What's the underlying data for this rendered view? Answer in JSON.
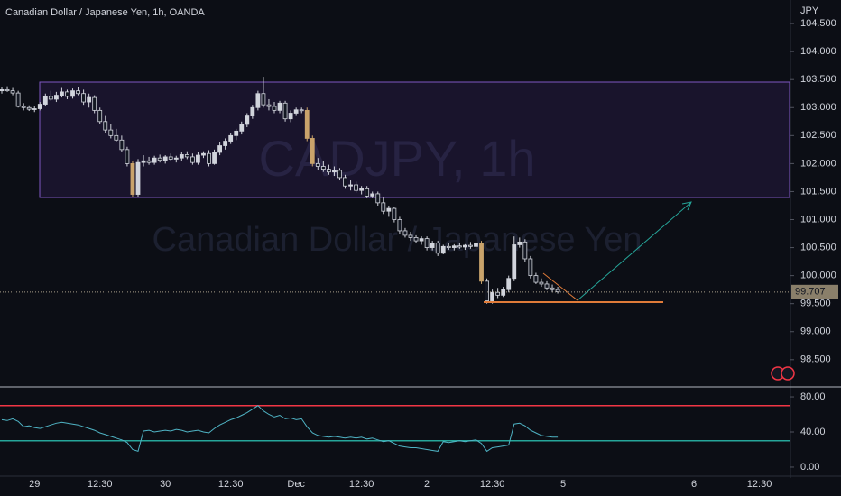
{
  "chart_data": [
    {
      "type": "candlestick",
      "title": "Canadian Dollar / Japanese Yen, 1h, OANDA",
      "watermark": "CADJPY, 1h",
      "watermark_subtitle": "Canadian Dollar / Japanese Yen",
      "y_axis_label": "JPY",
      "last_price": 99.707,
      "up_color": "#d1d4dc",
      "down_color": "#131722",
      "highlight_color": "#c9a36b",
      "categories": [
        null,
        null,
        null,
        null,
        null,
        null,
        "29",
        null,
        null,
        null,
        null,
        null,
        null,
        null,
        null,
        null,
        null,
        null,
        "12:30",
        null,
        null,
        null,
        null,
        null,
        null,
        null,
        null,
        null,
        null,
        null,
        "30",
        null,
        null,
        null,
        null,
        null,
        null,
        null,
        null,
        null,
        null,
        null,
        "12:30",
        null,
        null,
        null,
        null,
        null,
        null,
        null,
        null,
        null,
        null,
        null,
        "Dec",
        null,
        null,
        null,
        null,
        null,
        null,
        null,
        null,
        null,
        null,
        null,
        "12:30",
        null,
        null,
        null,
        null,
        null,
        null,
        null,
        null,
        null,
        null,
        null,
        "2",
        null,
        null,
        null,
        null,
        null,
        null,
        null,
        null,
        null,
        null,
        null,
        "12:30",
        null,
        null,
        null,
        null,
        null,
        null,
        null,
        null,
        null,
        null,
        null,
        null,
        "5",
        null,
        null,
        null,
        null,
        null,
        null,
        null,
        null,
        null,
        null,
        null,
        null,
        null,
        null,
        null,
        null,
        null,
        null,
        null,
        null,
        null,
        null,
        null,
        "6",
        null,
        null,
        null,
        null,
        null,
        null,
        null,
        null,
        null,
        null,
        null,
        "12:30",
        null,
        null
      ],
      "candles": [
        [
          103.3,
          103.36,
          103.25,
          103.32
        ],
        [
          103.32,
          103.38,
          103.28,
          103.3
        ],
        [
          103.3,
          103.35,
          103.22,
          103.26
        ],
        [
          103.26,
          103.3,
          103.0,
          103.02
        ],
        [
          103.02,
          103.08,
          102.95,
          103.0
        ],
        [
          103.0,
          103.04,
          102.94,
          102.97
        ],
        [
          102.97,
          103.02,
          102.92,
          102.98
        ],
        [
          102.98,
          103.1,
          102.95,
          103.06
        ],
        [
          103.06,
          103.25,
          103.02,
          103.2
        ],
        [
          103.2,
          103.3,
          103.12,
          103.15
        ],
        [
          103.15,
          103.28,
          103.1,
          103.22
        ],
        [
          103.22,
          103.35,
          103.18,
          103.28
        ],
        [
          103.28,
          103.32,
          103.15,
          103.2
        ],
        [
          103.2,
          103.34,
          103.16,
          103.3
        ],
        [
          103.3,
          103.36,
          103.22,
          103.25
        ],
        [
          103.25,
          103.32,
          103.05,
          103.1
        ],
        [
          103.1,
          103.25,
          103.0,
          103.18
        ],
        [
          103.18,
          103.22,
          102.9,
          102.95
        ],
        [
          102.95,
          103.0,
          102.7,
          102.75
        ],
        [
          102.75,
          102.85,
          102.55,
          102.6
        ],
        [
          102.6,
          102.7,
          102.45,
          102.5
        ],
        [
          102.5,
          102.62,
          102.38,
          102.42
        ],
        [
          102.42,
          102.5,
          102.2,
          102.25
        ],
        [
          102.25,
          102.3,
          101.95,
          102.0
        ],
        [
          102.0,
          102.05,
          101.4,
          101.45
        ],
        [
          101.45,
          102.08,
          101.4,
          102.02
        ],
        [
          102.02,
          102.15,
          101.95,
          102.05
        ],
        [
          102.05,
          102.12,
          101.98,
          102.02
        ],
        [
          102.02,
          102.14,
          101.98,
          102.1
        ],
        [
          102.1,
          102.16,
          102.02,
          102.06
        ],
        [
          102.06,
          102.15,
          102.0,
          102.12
        ],
        [
          102.12,
          102.18,
          102.05,
          102.08
        ],
        [
          102.08,
          102.14,
          102.02,
          102.1
        ],
        [
          102.1,
          102.2,
          102.04,
          102.16
        ],
        [
          102.16,
          102.22,
          102.08,
          102.12
        ],
        [
          102.12,
          102.18,
          101.98,
          102.02
        ],
        [
          102.02,
          102.2,
          101.98,
          102.15
        ],
        [
          102.15,
          102.22,
          102.1,
          102.18
        ],
        [
          102.18,
          102.24,
          101.95,
          102.0
        ],
        [
          102.0,
          102.25,
          101.98,
          102.2
        ],
        [
          102.2,
          102.38,
          102.15,
          102.32
        ],
        [
          102.32,
          102.45,
          102.25,
          102.4
        ],
        [
          102.4,
          102.55,
          102.35,
          102.5
        ],
        [
          102.5,
          102.62,
          102.42,
          102.58
        ],
        [
          102.58,
          102.75,
          102.52,
          102.7
        ],
        [
          102.7,
          102.9,
          102.65,
          102.85
        ],
        [
          102.85,
          103.05,
          102.8,
          103.0
        ],
        [
          103.0,
          103.3,
          102.95,
          103.25
        ],
        [
          103.25,
          103.55,
          103.0,
          103.05
        ],
        [
          103.05,
          103.15,
          102.95,
          103.02
        ],
        [
          103.02,
          103.1,
          102.9,
          102.95
        ],
        [
          102.95,
          103.12,
          102.9,
          103.08
        ],
        [
          103.08,
          103.12,
          102.75,
          102.8
        ],
        [
          102.8,
          102.95,
          102.74,
          102.9
        ],
        [
          102.9,
          103.0,
          102.85,
          102.96
        ],
        [
          102.96,
          103.0,
          102.9,
          102.95
        ],
        [
          102.95,
          103.0,
          102.4,
          102.45
        ],
        [
          102.45,
          102.5,
          101.95,
          102.0
        ],
        [
          102.0,
          102.1,
          101.88,
          101.95
        ],
        [
          101.95,
          102.05,
          101.85,
          101.9
        ],
        [
          101.9,
          101.98,
          101.8,
          101.85
        ],
        [
          101.85,
          101.95,
          101.78,
          101.88
        ],
        [
          101.88,
          101.92,
          101.7,
          101.75
        ],
        [
          101.75,
          101.8,
          101.55,
          101.6
        ],
        [
          101.6,
          101.7,
          101.52,
          101.62
        ],
        [
          101.62,
          101.68,
          101.48,
          101.52
        ],
        [
          101.52,
          101.6,
          101.45,
          101.55
        ],
        [
          101.55,
          101.6,
          101.38,
          101.42
        ],
        [
          101.42,
          101.5,
          101.38,
          101.46
        ],
        [
          101.46,
          101.5,
          101.25,
          101.3
        ],
        [
          101.3,
          101.4,
          101.1,
          101.15
        ],
        [
          101.15,
          101.25,
          101.05,
          101.2
        ],
        [
          101.2,
          101.22,
          100.95,
          101.0
        ],
        [
          101.0,
          101.05,
          100.75,
          100.8
        ],
        [
          100.8,
          100.85,
          100.68,
          100.72
        ],
        [
          100.72,
          100.78,
          100.62,
          100.68
        ],
        [
          100.68,
          100.72,
          100.58,
          100.62
        ],
        [
          100.62,
          100.7,
          100.55,
          100.66
        ],
        [
          100.66,
          100.7,
          100.45,
          100.5
        ],
        [
          100.5,
          100.62,
          100.45,
          100.58
        ],
        [
          100.58,
          100.62,
          100.35,
          100.4
        ],
        [
          100.4,
          100.55,
          100.38,
          100.52
        ],
        [
          100.52,
          100.58,
          100.46,
          100.5
        ],
        [
          100.5,
          100.56,
          100.45,
          100.53
        ],
        [
          100.53,
          100.58,
          100.48,
          100.51
        ],
        [
          100.51,
          100.56,
          100.46,
          100.54
        ],
        [
          100.54,
          100.6,
          100.48,
          100.52
        ],
        [
          100.52,
          100.62,
          100.48,
          100.58
        ],
        [
          100.58,
          100.62,
          99.85,
          99.9
        ],
        [
          99.9,
          99.95,
          99.5,
          99.55
        ],
        [
          99.55,
          99.75,
          99.5,
          99.7
        ],
        [
          99.7,
          99.78,
          99.6,
          99.65
        ],
        [
          99.65,
          99.8,
          99.62,
          99.75
        ],
        [
          99.75,
          100.0,
          99.7,
          99.95
        ],
        [
          99.95,
          100.7,
          99.9,
          100.55
        ],
        [
          100.55,
          100.68,
          100.5,
          100.6
        ],
        [
          100.6,
          100.65,
          100.25,
          100.3
        ],
        [
          100.3,
          100.35,
          99.95,
          100.0
        ],
        [
          100.0,
          100.05,
          99.85,
          99.88
        ],
        [
          99.88,
          99.95,
          99.8,
          99.85
        ],
        [
          99.85,
          99.9,
          99.74,
          99.78
        ],
        [
          99.78,
          99.84,
          99.7,
          99.75
        ],
        [
          99.75,
          99.8,
          99.68,
          99.71
        ],
        null,
        null,
        null,
        null,
        null,
        null,
        null,
        null,
        null,
        null,
        null,
        null,
        null,
        null,
        null,
        null,
        null,
        null,
        null,
        null,
        null,
        null,
        null,
        null,
        null,
        null,
        null,
        null,
        null,
        null,
        null,
        null,
        null,
        null,
        null,
        null,
        null,
        null,
        null
      ],
      "ylim": [
        98.03,
        104.92
      ],
      "yticks": [
        {
          "value": 104.5,
          "label": "104.500"
        },
        {
          "value": 104,
          "label": "104.000"
        },
        {
          "value": 103.5,
          "label": "103.500"
        },
        {
          "value": 103,
          "label": "103.000"
        },
        {
          "value": 102.5,
          "label": "102.500"
        },
        {
          "value": 102,
          "label": "102.000"
        },
        {
          "value": 101.5,
          "label": "101.500"
        },
        {
          "value": 101,
          "label": "101.000"
        },
        {
          "value": 100.5,
          "label": "100.500"
        },
        {
          "value": 100,
          "label": "100.000"
        },
        {
          "value": 99.5,
          "label": "99.500"
        },
        {
          "value": 99,
          "label": "99.000"
        },
        {
          "value": 98.5,
          "label": "98.500"
        }
      ],
      "grid": false
    },
    {
      "type": "line",
      "color": "#4fb3c4",
      "upper_band": 70,
      "upper_color": "#f23645",
      "lower_band": 30,
      "lower_color": "#26a69a",
      "values": [
        54,
        53,
        55,
        52,
        46,
        47,
        45,
        44,
        46,
        48,
        50,
        51,
        50,
        49,
        48,
        46,
        44,
        42,
        39,
        37,
        35,
        33,
        31,
        28,
        20,
        18,
        41,
        42,
        40,
        41,
        42,
        41,
        43,
        42,
        40,
        41,
        42,
        40,
        39,
        44,
        48,
        51,
        54,
        56,
        59,
        62,
        66,
        70,
        64,
        60,
        57,
        59,
        55,
        56,
        54,
        55,
        46,
        39,
        36,
        35,
        34,
        35,
        34,
        33,
        34,
        33,
        34,
        32,
        33,
        31,
        29,
        30,
        27,
        24,
        23,
        22,
        22,
        21,
        20,
        19,
        18,
        29,
        28,
        29,
        30,
        29,
        30,
        31,
        27,
        18,
        22,
        23,
        24,
        25,
        49,
        50,
        47,
        42,
        39,
        36,
        35,
        34,
        34
      ],
      "ylim": [
        -10.3,
        90.3
      ],
      "yticks": [
        {
          "value": 80,
          "label": "80.00"
        },
        {
          "value": 40,
          "label": "40.00"
        },
        {
          "value": 0,
          "label": "0.00"
        }
      ]
    }
  ]
}
